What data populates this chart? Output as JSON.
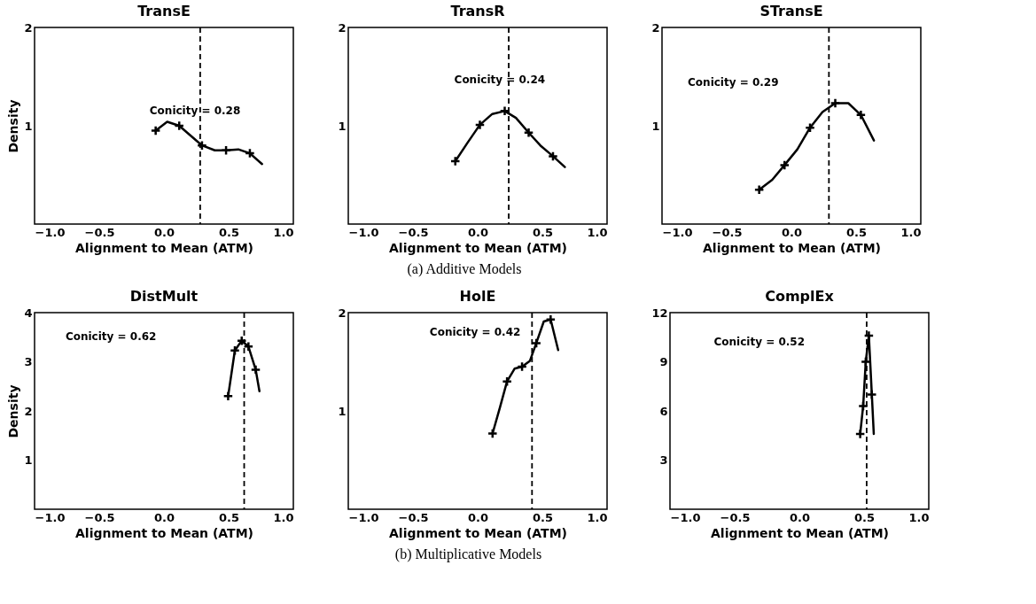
{
  "chart_data": [
    {
      "type": "line",
      "title": "TransE",
      "xlabel": "Alignment to Mean (ATM)",
      "ylabel": "Density",
      "xlim": [
        -1,
        1
      ],
      "xticks": [
        {
          "value": -1,
          "label": "−1.0"
        },
        {
          "value": -0.5,
          "label": "−0.5"
        },
        {
          "value": 0,
          "label": "0.0"
        },
        {
          "value": 0.5,
          "label": "0.5"
        },
        {
          "value": 1,
          "label": "1.0"
        }
      ],
      "ylim": [
        0,
        2
      ],
      "yticks": [
        1,
        2
      ],
      "grid": false,
      "series": [
        {
          "color": "#000000",
          "x": [
            -0.064,
            0.025,
            0.118,
            0.294,
            0.393,
            0.48,
            0.575,
            0.664,
            0.758
          ],
          "values": [
            0.95,
            1.04,
            1.0,
            0.8,
            0.75,
            0.75,
            0.76,
            0.72,
            0.61
          ]
        },
        {
          "type": "scatter",
          "marker": "cross",
          "color": "#000000",
          "x": [
            -0.064,
            0.118,
            0.294,
            0.48,
            0.664
          ],
          "values": [
            0.95,
            1.0,
            0.8,
            0.75,
            0.72
          ]
        }
      ],
      "ref_lines": [
        {
          "axis": "x",
          "value": 0.28,
          "color": "#000000",
          "line_style": "dashed"
        }
      ],
      "annotations": [
        "Conicity = 0.28"
      ]
    },
    {
      "type": "line",
      "title": "TransR",
      "xlabel": "Alignment to Mean (ATM)",
      "xlim": [
        -1,
        1
      ],
      "xticks": [
        {
          "value": -1,
          "label": "−1.0"
        },
        {
          "value": -0.5,
          "label": "−0.5"
        },
        {
          "value": 0,
          "label": "0.0"
        },
        {
          "value": 0.5,
          "label": "0.5"
        },
        {
          "value": 1,
          "label": "1.0"
        }
      ],
      "ylim": [
        0,
        2
      ],
      "yticks": [
        1,
        2
      ],
      "grid": false,
      "series": [
        {
          "color": "#000000",
          "x": [
            -0.173,
            -0.077,
            0.017,
            0.113,
            0.209,
            0.296,
            0.394,
            0.484,
            0.582,
            0.674
          ],
          "values": [
            0.64,
            0.83,
            1.01,
            1.12,
            1.15,
            1.08,
            0.93,
            0.8,
            0.69,
            0.58
          ]
        },
        {
          "type": "scatter",
          "marker": "cross",
          "color": "#000000",
          "x": [
            -0.173,
            0.017,
            0.209,
            0.394,
            0.582
          ],
          "values": [
            0.64,
            1.01,
            1.15,
            0.93,
            0.69
          ]
        }
      ],
      "ref_lines": [
        {
          "axis": "x",
          "value": 0.24,
          "color": "#000000",
          "line_style": "dashed"
        }
      ],
      "annotations": [
        "Conicity = 0.24",
        "(a) Additive Models"
      ]
    },
    {
      "type": "line",
      "title": "STransE",
      "xlabel": "Alignment to Mean (ATM)",
      "xlim": [
        -1,
        1
      ],
      "xticks": [
        {
          "value": -1,
          "label": "−1.0"
        },
        {
          "value": -0.5,
          "label": "−0.5"
        },
        {
          "value": 0,
          "label": "0.0"
        },
        {
          "value": 0.5,
          "label": "0.5"
        },
        {
          "value": 1,
          "label": "1.0"
        }
      ],
      "ylim": [
        0,
        2
      ],
      "yticks": [
        1,
        2
      ],
      "grid": false,
      "series": [
        {
          "color": "#000000",
          "x": [
            -0.249,
            -0.148,
            -0.053,
            0.046,
            0.144,
            0.24,
            0.339,
            0.44,
            0.537,
            0.638
          ],
          "values": [
            0.35,
            0.45,
            0.6,
            0.76,
            0.98,
            1.14,
            1.23,
            1.23,
            1.11,
            0.85
          ]
        },
        {
          "type": "scatter",
          "marker": "cross",
          "color": "#000000",
          "x": [
            -0.249,
            -0.053,
            0.144,
            0.339,
            0.537
          ],
          "values": [
            0.35,
            0.6,
            0.98,
            1.23,
            1.11
          ]
        }
      ],
      "ref_lines": [
        {
          "axis": "x",
          "value": 0.29,
          "color": "#000000",
          "line_style": "dashed"
        }
      ],
      "annotations": [
        "Conicity = 0.29"
      ]
    },
    {
      "type": "line",
      "title": "DistMult",
      "xlabel": "Alignment to Mean (ATM)",
      "ylabel": "Density",
      "xlim": [
        -1,
        1
      ],
      "xticks": [
        {
          "value": -1,
          "label": "−1.0"
        },
        {
          "value": -0.5,
          "label": "−0.5"
        },
        {
          "value": 0,
          "label": "0.0"
        },
        {
          "value": 0.5,
          "label": "0.5"
        },
        {
          "value": 1,
          "label": "1.0"
        }
      ],
      "ylim": [
        0,
        4
      ],
      "yticks": [
        1,
        2,
        3,
        4
      ],
      "grid": false,
      "series": [
        {
          "color": "#000000",
          "x": [
            0.496,
            0.548,
            0.601,
            0.653,
            0.709,
            0.738
          ],
          "values": [
            2.3,
            3.23,
            3.43,
            3.31,
            2.84,
            2.4
          ]
        },
        {
          "type": "scatter",
          "marker": "cross",
          "color": "#000000",
          "x": [
            0.496,
            0.548,
            0.601,
            0.653,
            0.709
          ],
          "values": [
            2.3,
            3.23,
            3.43,
            3.31,
            2.84
          ]
        }
      ],
      "ref_lines": [
        {
          "axis": "x",
          "value": 0.62,
          "color": "#000000",
          "line_style": "dashed"
        }
      ],
      "annotations": [
        "Conicity = 0.62"
      ]
    },
    {
      "type": "line",
      "title": "HolE",
      "xlabel": "Alignment to Mean (ATM)",
      "xlim": [
        -1,
        1
      ],
      "xticks": [
        {
          "value": -1,
          "label": "−1.0"
        },
        {
          "value": -0.5,
          "label": "−0.5"
        },
        {
          "value": 0,
          "label": "0.0"
        },
        {
          "value": 0.5,
          "label": "0.5"
        },
        {
          "value": 1,
          "label": "1.0"
        }
      ],
      "ylim": [
        0,
        2
      ],
      "yticks": [
        1,
        2
      ],
      "grid": false,
      "series": [
        {
          "color": "#000000",
          "x": [
            0.115,
            0.171,
            0.227,
            0.285,
            0.343,
            0.404,
            0.453,
            0.511,
            0.564,
            0.622
          ],
          "values": [
            0.77,
            1.03,
            1.3,
            1.43,
            1.45,
            1.51,
            1.69,
            1.91,
            1.93,
            1.62
          ]
        },
        {
          "type": "scatter",
          "marker": "cross",
          "color": "#000000",
          "x": [
            0.115,
            0.227,
            0.343,
            0.453,
            0.564
          ],
          "values": [
            0.77,
            1.3,
            1.45,
            1.69,
            1.93
          ]
        }
      ],
      "ref_lines": [
        {
          "axis": "x",
          "value": 0.42,
          "color": "#000000",
          "line_style": "dashed"
        }
      ],
      "annotations": [
        "Conicity = 0.42",
        "(b) Multiplicative Models"
      ]
    },
    {
      "type": "line",
      "title": "ComplEx",
      "xlabel": "Alignment to Mean (ATM)",
      "xlim": [
        -1,
        1
      ],
      "xticks": [
        {
          "value": -1,
          "label": "−1.0"
        },
        {
          "value": -0.5,
          "label": "−0.5"
        },
        {
          "value": 0,
          "label": "0.0"
        },
        {
          "value": 0.5,
          "label": "0.5"
        },
        {
          "value": 1,
          "label": "1.0"
        }
      ],
      "ylim": [
        0,
        12
      ],
      "yticks": [
        3,
        6,
        9,
        12
      ],
      "grid": false,
      "series": [
        {
          "color": "#000000",
          "x": [
            0.47,
            0.493,
            0.513,
            0.537,
            0.56,
            0.575
          ],
          "values": [
            4.6,
            6.3,
            9.0,
            10.6,
            7.0,
            4.6
          ]
        },
        {
          "type": "scatter",
          "marker": "cross",
          "color": "#000000",
          "x": [
            0.47,
            0.493,
            0.513,
            0.537,
            0.56
          ],
          "values": [
            4.6,
            6.3,
            9.0,
            10.6,
            7.0
          ]
        }
      ],
      "ref_lines": [
        {
          "axis": "x",
          "value": 0.52,
          "color": "#000000",
          "line_style": "dashed"
        }
      ],
      "annotations": [
        "Conicity = 0.52"
      ]
    }
  ]
}
